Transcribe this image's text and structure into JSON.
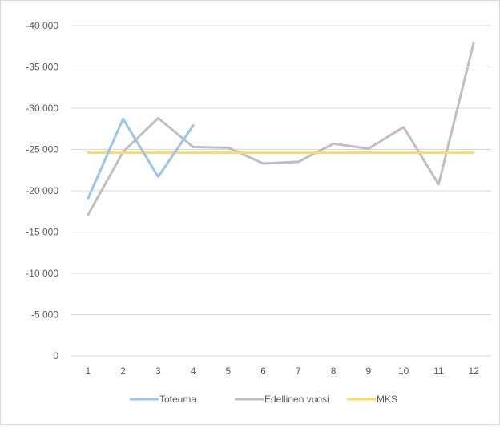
{
  "chart_data": {
    "type": "line",
    "title": "",
    "xlabel": "",
    "ylabel": "",
    "x": [
      "1",
      "2",
      "3",
      "4",
      "5",
      "6",
      "7",
      "8",
      "9",
      "10",
      "11",
      "12"
    ],
    "y_ticks": [
      -40000,
      -35000,
      -30000,
      -25000,
      -20000,
      -15000,
      -10000,
      -5000,
      0
    ],
    "y_tick_labels": [
      "-40 000",
      "-35 000",
      "-30 000",
      "-25 000",
      "-20 000",
      "-15 000",
      "-10 000",
      "-5 000",
      "0"
    ],
    "ylim": [
      0,
      -40000
    ],
    "y_axis_reversed": true,
    "grid": "horizontal",
    "legend_position": "bottom",
    "series": [
      {
        "name": "Toteuma",
        "color": "#9dc3e6",
        "values": [
          -19100,
          -28700,
          -21700,
          -27900,
          null,
          null,
          null,
          null,
          null,
          null,
          null,
          null
        ]
      },
      {
        "name": "Edellinen vuosi",
        "color": "#bfbfbf",
        "values": [
          -17100,
          -24700,
          -28800,
          -25300,
          -25200,
          -23300,
          -23500,
          -25700,
          -25100,
          -27700,
          -20800,
          -37900
        ]
      },
      {
        "name": "MKS",
        "color": "#ffd966",
        "values": [
          -24600,
          -24600,
          -24600,
          -24600,
          -24600,
          -24600,
          -24600,
          -24600,
          -24600,
          -24600,
          -24600,
          -24600
        ]
      }
    ]
  }
}
